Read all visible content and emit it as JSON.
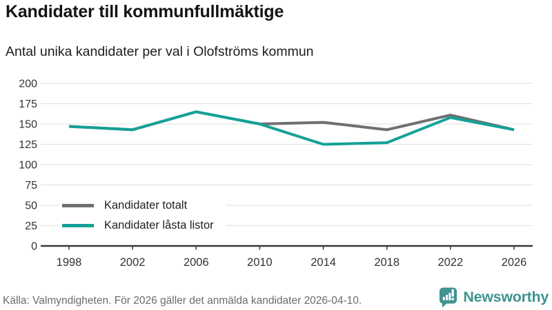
{
  "header": {
    "title": "Kandidater till kommunfullmäktige",
    "subtitle": "Antal unika kandidater per val i Olofströms kommun"
  },
  "chart_data": {
    "type": "line",
    "title": "Kandidater till kommunfullmäktige",
    "subtitle": "Antal unika kandidater per val i Olofströms kommun",
    "x": [
      1998,
      2002,
      2006,
      2010,
      2014,
      2018,
      2022,
      2026
    ],
    "series": [
      {
        "name": "Kandidater totalt",
        "color": "#6f6f6f",
        "values": [
          147,
          143,
          165,
          150,
          152,
          143,
          161,
          143
        ]
      },
      {
        "name": "Kandidater låsta listor",
        "color": "#14a197",
        "values": [
          147,
          143,
          165,
          150,
          125,
          127,
          158,
          143
        ]
      }
    ],
    "ylim": [
      0,
      200
    ],
    "ytick_step": 25,
    "yticks": [
      0,
      25,
      50,
      75,
      100,
      125,
      150,
      175,
      200
    ],
    "grid": "horizontal",
    "legend_position": "inside-bottom-left"
  },
  "footer": {
    "source": "Källa: Valmyndigheten. För 2026 gäller det anmälda kandidater 2026-04-10.",
    "brand": "Newsworthy"
  },
  "colors": {
    "line_total": "#6f6f6f",
    "line_locked": "#14a197",
    "brand_teal": "#3f9390",
    "grid": "#e3e3e3",
    "axis": "#383838",
    "tick_text": "#333333",
    "title_text": "#141414",
    "muted_text": "#6b6b6b"
  }
}
